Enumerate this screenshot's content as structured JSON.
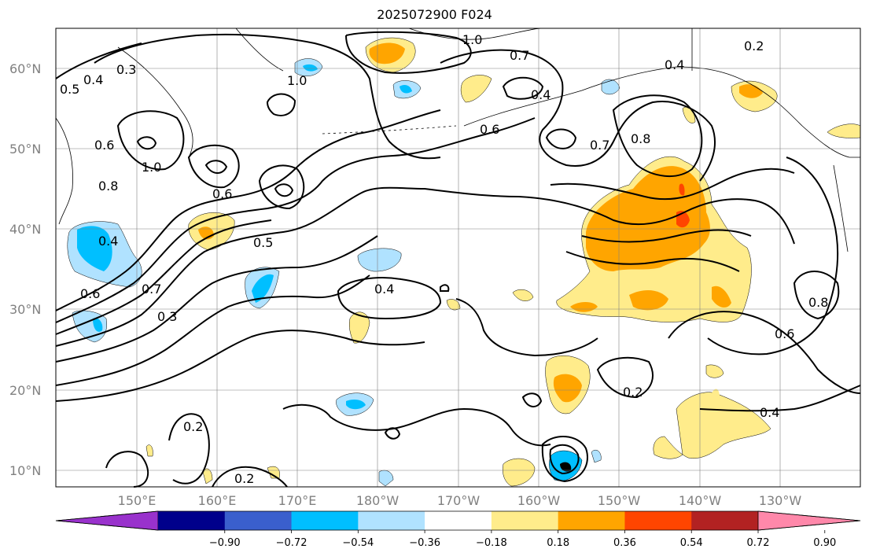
{
  "title": "2025072900 F024",
  "map": {
    "lat_labels": [
      "60°N",
      "50°N",
      "40°N",
      "30°N",
      "20°N",
      "10°N"
    ],
    "lon_labels": [
      "150°E",
      "160°E",
      "170°E",
      "180°W",
      "170°W",
      "160°W",
      "150°W",
      "140°W",
      "130°W"
    ],
    "grid": true
  },
  "colorbar": {
    "ticks": [
      "−0.90",
      "−0.72",
      "−0.54",
      "−0.36",
      "−0.18",
      "0.18",
      "0.36",
      "0.54",
      "0.72",
      "0.90"
    ],
    "colors": [
      "#9932cc",
      "#00008b",
      "#3a5fcd",
      "#00bfff",
      "#b0e2ff",
      "#ffffff",
      "#ffec8b",
      "#ffa500",
      "#ff4500",
      "#b22222",
      "#ff88aa"
    ]
  },
  "contour_labels": [
    "0.3",
    "0.4",
    "0.5",
    "0.6",
    "0.7",
    "0.8",
    "1.0",
    "0.2"
  ],
  "legend_colors": {
    "yellow": "#ffec8b",
    "orange": "#ffa500",
    "red": "#ff4500",
    "lightblue": "#b0e2ff",
    "blue": "#00bfff"
  }
}
